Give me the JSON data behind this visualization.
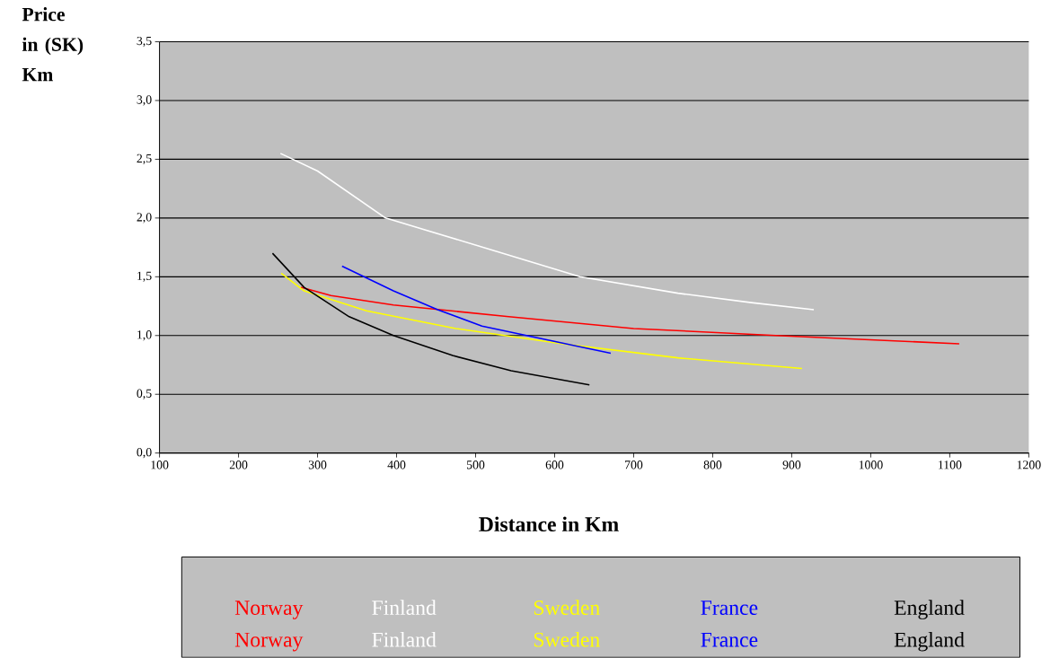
{
  "chart_data": {
    "type": "line",
    "xlabel": "Distance in Km",
    "ylabel": "Price in (SK) Km",
    "xlim": [
      100,
      1200
    ],
    "xticks": [
      100,
      200,
      300,
      400,
      500,
      600,
      700,
      800,
      900,
      1000,
      1100,
      1200
    ],
    "ylim": [
      0,
      3.5
    ],
    "yticks": [
      {
        "value": 0,
        "label": "0,0"
      },
      {
        "value": 0.5,
        "label": "0,5"
      },
      {
        "value": 1,
        "label": "1,0"
      },
      {
        "value": 1.5,
        "label": "1,5"
      },
      {
        "value": 2,
        "label": "2,0"
      },
      {
        "value": 2.5,
        "label": "2,5"
      },
      {
        "value": 3,
        "label": "3,0"
      },
      {
        "value": 3.5,
        "label": "3,5"
      }
    ],
    "grid": "y",
    "legend": "bottom",
    "marker": "none",
    "line_style": "solid",
    "series": [
      {
        "name": "Norway",
        "color": "#ff0000",
        "x": [
          279,
          317,
          396,
          542,
          700,
          880,
          1112
        ],
        "values": [
          1.41,
          1.34,
          1.26,
          1.16,
          1.06,
          1.0,
          0.93
        ]
      },
      {
        "name": "Finland",
        "color": "#ffffff",
        "x": [
          253,
          300,
          386,
          500,
          632,
          756,
          849,
          928
        ],
        "values": [
          2.55,
          2.4,
          2.0,
          1.77,
          1.5,
          1.36,
          1.28,
          1.22
        ]
      },
      {
        "name": "Sweden",
        "color": "#ffff00",
        "x": [
          254,
          283,
          362,
          475,
          610,
          756,
          913
        ],
        "values": [
          1.53,
          1.38,
          1.21,
          1.06,
          0.93,
          0.81,
          0.72
        ]
      },
      {
        "name": "France",
        "color": "#0000ff",
        "x": [
          331,
          396,
          452,
          508,
          621,
          671
        ],
        "values": [
          1.59,
          1.38,
          1.22,
          1.08,
          0.92,
          0.85
        ]
      },
      {
        "name": "England",
        "color": "#000000",
        "x": [
          243,
          283,
          340,
          396,
          471,
          545,
          644
        ],
        "values": [
          1.7,
          1.41,
          1.16,
          1.0,
          0.83,
          0.7,
          0.58
        ]
      }
    ],
    "annotations": [
      "Norway",
      "Finland",
      "Sweden",
      "France",
      "England"
    ]
  }
}
